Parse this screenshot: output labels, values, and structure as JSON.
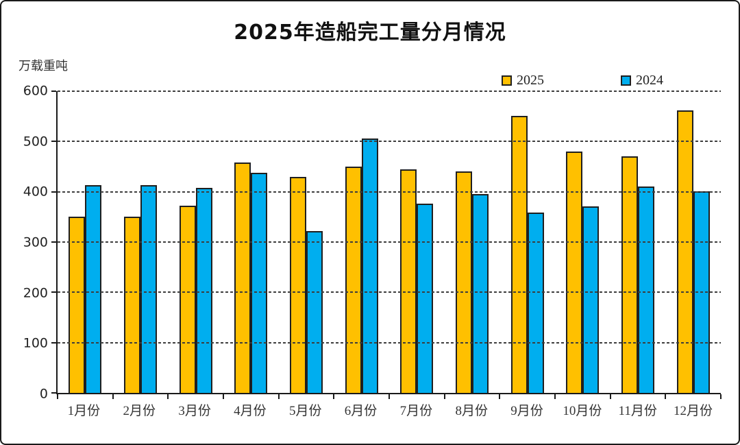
{
  "page": {
    "title": "2025年造船完工量分月情况",
    "unit_label": "万载重吨"
  },
  "legend": {
    "items": [
      {
        "label": "2025",
        "color": "#FFC000"
      },
      {
        "label": "2024",
        "color": "#00AEEF"
      }
    ]
  },
  "chart_data": {
    "type": "bar",
    "title": "2025年造船完工量分月情况",
    "xlabel": "",
    "ylabel": "万载重吨",
    "categories": [
      "1月份",
      "2月份",
      "3月份",
      "4月份",
      "5月份",
      "6月份",
      "7月份",
      "8月份",
      "9月份",
      "10月份",
      "11月份",
      "12月份"
    ],
    "series": [
      {
        "name": "2025",
        "color": "#FFC000",
        "values": [
          350,
          351,
          372,
          458,
          430,
          450,
          445,
          441,
          551,
          480,
          470,
          562
        ]
      },
      {
        "name": "2024",
        "color": "#00AEEF",
        "values": [
          413,
          413,
          408,
          438,
          322,
          506,
          377,
          395,
          359,
          371,
          410,
          401
        ]
      }
    ],
    "ylim": [
      0,
      600
    ],
    "yticks": [
      0,
      100,
      200,
      300,
      400,
      500,
      600
    ],
    "grid": "horizontal-dashed",
    "legend_position": "top-right",
    "bar_outline_color": "#1f1f1f",
    "axis_color": "#1a1a1a"
  }
}
